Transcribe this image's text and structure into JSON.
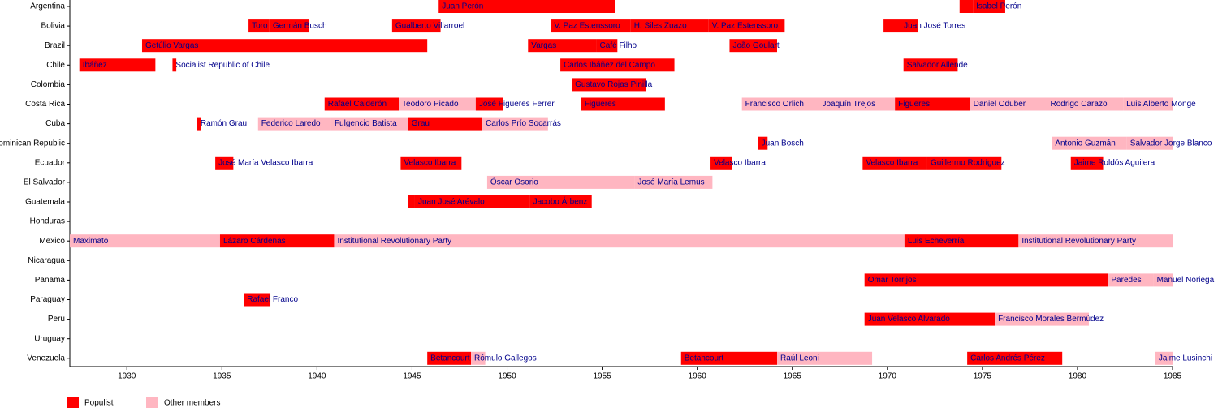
{
  "chart_data": {
    "type": "timeline",
    "xlim": [
      1927,
      1985
    ],
    "xticks": [
      1930,
      1935,
      1940,
      1945,
      1950,
      1955,
      1960,
      1965,
      1970,
      1975,
      1980,
      1985
    ],
    "series": [
      {
        "name": "Populist",
        "color": "#ff0000"
      },
      {
        "name": "Other members",
        "color": "#ffb6c1"
      }
    ],
    "rows": [
      {
        "name": "Argentina",
        "periods": [
          {
            "label": "Juan Perón",
            "start": 1946.4,
            "end": 1955.7,
            "series": 0
          },
          {
            "label": null,
            "start": 1973.8,
            "end": 1974.5,
            "series": 0
          },
          {
            "label": "Isabel Perón",
            "start": 1974.5,
            "end": 1976.2,
            "series": 0
          }
        ]
      },
      {
        "name": "Bolivia",
        "periods": [
          {
            "label": "Toro",
            "start": 1936.4,
            "end": 1937.5,
            "series": 0
          },
          {
            "label": "Germán Busch",
            "start": 1937.5,
            "end": 1939.6,
            "series": 0
          },
          {
            "label": "Gualberto Villarroel",
            "start": 1943.95,
            "end": 1946.5,
            "series": 0
          },
          {
            "label": "V. Paz Estenssoro",
            "start": 1952.3,
            "end": 1956.5,
            "series": 0
          },
          {
            "label": "H. Siles Zuazo",
            "start": 1956.5,
            "end": 1960.6,
            "series": 0
          },
          {
            "label": "V. Paz Estenssoro",
            "start": 1960.6,
            "end": 1964.6,
            "series": 0
          },
          {
            "label": null,
            "start": 1969.8,
            "end": 1970.7,
            "series": 0
          },
          {
            "label": "Juan José Torres",
            "start": 1970.7,
            "end": 1971.6,
            "series": 0
          }
        ]
      },
      {
        "name": "Brazil",
        "periods": [
          {
            "label": "Getúlio Vargas",
            "start": 1930.8,
            "end": 1945.8,
            "series": 0
          },
          {
            "label": "Vargas",
            "start": 1951.1,
            "end": 1954.7,
            "series": 0
          },
          {
            "label": "Café Filho",
            "start": 1954.7,
            "end": 1955.8,
            "series": 0
          },
          {
            "label": "João Goulart",
            "start": 1961.7,
            "end": 1964.2,
            "series": 0
          }
        ]
      },
      {
        "name": "Chile",
        "periods": [
          {
            "label": "Ibáñez",
            "start": 1927.5,
            "end": 1931.5,
            "series": 0
          },
          {
            "label": "Socialist Republic of Chile",
            "start": 1932.4,
            "end": 1932.6,
            "series": 0
          },
          {
            "label": "Carlos Ibáñez del Campo",
            "start": 1952.8,
            "end": 1958.8,
            "series": 0
          },
          {
            "label": "Salvador Allende",
            "start": 1970.85,
            "end": 1973.7,
            "series": 0
          }
        ]
      },
      {
        "name": "Colombia",
        "periods": [
          {
            "label": "Gustavo Rojas Pinilla",
            "start": 1953.4,
            "end": 1957.3,
            "series": 0
          }
        ]
      },
      {
        "name": "Costa Rica",
        "periods": [
          {
            "label": "Rafael Calderón",
            "start": 1940.4,
            "end": 1944.3,
            "series": 0
          },
          {
            "label": "Teodoro Picado",
            "start": 1944.3,
            "end": 1948.35,
            "series": 1
          },
          {
            "label": "José Figueres Ferrer",
            "start": 1948.35,
            "end": 1949.8,
            "series": 0
          },
          {
            "label": "Figueres",
            "start": 1953.9,
            "end": 1958.3,
            "series": 0
          },
          {
            "label": "Francisco Orlich",
            "start": 1962.35,
            "end": 1966.4,
            "series": 1
          },
          {
            "label": "Joaquín Trejos",
            "start": 1966.4,
            "end": 1970.4,
            "series": 1
          },
          {
            "label": "Figueres",
            "start": 1970.4,
            "end": 1974.35,
            "series": 0
          },
          {
            "label": "Daniel Oduber",
            "start": 1974.35,
            "end": 1978.4,
            "series": 1
          },
          {
            "label": "Rodrigo Carazo",
            "start": 1978.4,
            "end": 1982.4,
            "series": 1
          },
          {
            "label": "Luis Alberto Monge",
            "start": 1982.4,
            "end": 1985,
            "series": 1
          }
        ]
      },
      {
        "name": "Cuba",
        "periods": [
          {
            "label": "Ramón Grau",
            "start": 1933.7,
            "end": 1933.9,
            "series": 0
          },
          {
            "label": "Federico Laredo",
            "start": 1936.9,
            "end": 1940.75,
            "series": 1
          },
          {
            "label": "Fulgencio Batista",
            "start": 1940.75,
            "end": 1944.8,
            "series": 1
          },
          {
            "label": "Grau",
            "start": 1944.8,
            "end": 1948.7,
            "series": 0
          },
          {
            "label": "Carlos Prío Socarrás",
            "start": 1948.7,
            "end": 1952.15,
            "series": 1
          }
        ]
      },
      {
        "name": "Dominican Republic",
        "periods": [
          {
            "label": "Juan Bosch",
            "start": 1963.2,
            "end": 1963.7,
            "series": 0
          },
          {
            "label": "Antonio Guzmán",
            "start": 1978.65,
            "end": 1982.6,
            "series": 1
          },
          {
            "label": "Salvador Jorge Blanco",
            "start": 1982.6,
            "end": 1985,
            "series": 1
          }
        ]
      },
      {
        "name": "Ecuador",
        "periods": [
          {
            "label": "José María Velasco Ibarra",
            "start": 1934.65,
            "end": 1935.6,
            "series": 0
          },
          {
            "label": "Velasco Ibarra",
            "start": 1944.4,
            "end": 1947.6,
            "series": 0
          },
          {
            "label": "Velasco Ibarra",
            "start": 1960.7,
            "end": 1961.85,
            "series": 0
          },
          {
            "label": "Velasco Ibarra",
            "start": 1968.7,
            "end": 1972.1,
            "series": 0
          },
          {
            "label": "Guillermo Rodríguez",
            "start": 1972.1,
            "end": 1976.0,
            "series": 0
          },
          {
            "label": "Jaime Roldós Aguilera",
            "start": 1979.65,
            "end": 1981.35,
            "series": 0
          }
        ]
      },
      {
        "name": "El Salvador",
        "periods": [
          {
            "label": "Óscar Osorio",
            "start": 1948.95,
            "end": 1956.7,
            "series": 1
          },
          {
            "label": "José María Lemus",
            "start": 1956.7,
            "end": 1960.8,
            "series": 1
          }
        ]
      },
      {
        "name": "Guatemala",
        "periods": [
          {
            "label": null,
            "start": 1944.8,
            "end": 1945.15,
            "series": 0
          },
          {
            "label": "Juan José Arévalo",
            "start": 1945.15,
            "end": 1951.2,
            "series": 0
          },
          {
            "label": "Jacobo Árbenz",
            "start": 1951.2,
            "end": 1954.45,
            "series": 0
          }
        ]
      },
      {
        "name": "Honduras",
        "periods": []
      },
      {
        "name": "Mexico",
        "periods": [
          {
            "label": "Maximato",
            "start": 1927,
            "end": 1934.9,
            "series": 1
          },
          {
            "label": "Lázaro Cárdenas",
            "start": 1934.9,
            "end": 1940.9,
            "series": 0
          },
          {
            "label": "Institutional Revolutionary Party",
            "start": 1940.9,
            "end": 1970.9,
            "series": 1
          },
          {
            "label": "Luis Echeverría",
            "start": 1970.9,
            "end": 1976.9,
            "series": 0
          },
          {
            "label": "Institutional Revolutionary Party",
            "start": 1976.9,
            "end": 1985,
            "series": 1
          }
        ]
      },
      {
        "name": "Nicaragua",
        "periods": []
      },
      {
        "name": "Panama",
        "periods": [
          {
            "label": "Omar Torrijos",
            "start": 1968.8,
            "end": 1981.6,
            "series": 0
          },
          {
            "label": "Paredes",
            "start": 1981.6,
            "end": 1984.0,
            "series": 1
          },
          {
            "label": "Manuel Noriega",
            "start": 1984.0,
            "end": 1985,
            "series": 1
          }
        ]
      },
      {
        "name": "Paraguay",
        "periods": [
          {
            "label": "Rafael Franco",
            "start": 1936.15,
            "end": 1937.55,
            "series": 0
          }
        ]
      },
      {
        "name": "Peru",
        "periods": [
          {
            "label": "Juan Velasco Alvarado",
            "start": 1968.8,
            "end": 1975.65,
            "series": 0
          },
          {
            "label": "Francisco Morales Bermúdez",
            "start": 1975.65,
            "end": 1980.6,
            "series": 1
          }
        ]
      },
      {
        "name": "Uruguay",
        "periods": []
      },
      {
        "name": "Venezuela",
        "periods": [
          {
            "label": "Betancourt",
            "start": 1945.8,
            "end": 1948.1,
            "series": 0
          },
          {
            "label": "Rómulo Gallegos",
            "start": 1948.1,
            "end": 1948.85,
            "series": 1
          },
          {
            "label": "Betancourt",
            "start": 1959.15,
            "end": 1964.2,
            "series": 0
          },
          {
            "label": "Raúl Leoni",
            "start": 1964.2,
            "end": 1969.2,
            "series": 1
          },
          {
            "label": "Carlos Andrés Pérez",
            "start": 1974.2,
            "end": 1979.2,
            "series": 0
          },
          {
            "label": "Jaime Lusinchi",
            "start": 1984.1,
            "end": 1985,
            "series": 1
          }
        ]
      }
    ]
  }
}
